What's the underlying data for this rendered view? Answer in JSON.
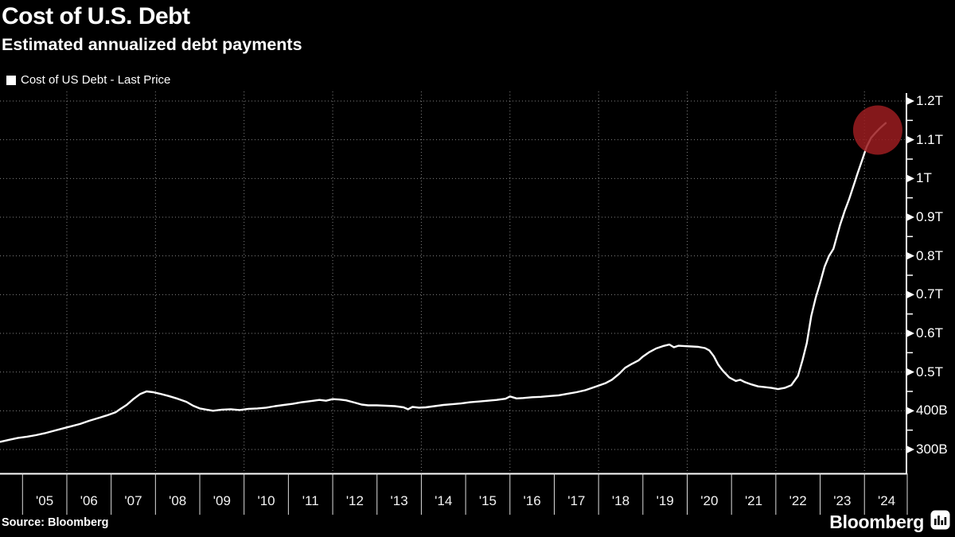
{
  "header": {
    "title": "Cost of U.S. Debt",
    "subtitle": "Estimated annualized debt payments"
  },
  "legend": {
    "label": "Cost of US Debt - Last Price",
    "swatch_color": "#ffffff"
  },
  "chart_data": {
    "type": "line",
    "title": "Cost of U.S. Debt",
    "subtitle": "Estimated annualized debt payments",
    "unit": "USD, annualized debt payments (B = billions, T = trillions)",
    "series": [
      {
        "name": "Cost of US Debt - Last Price",
        "color": "#ffffff",
        "x_years": [
          2004.5,
          2004.7,
          2004.9,
          2005.1,
          2005.3,
          2005.5,
          2005.7,
          2005.9,
          2006.1,
          2006.3,
          2006.5,
          2006.7,
          2006.9,
          2007.1,
          2007.2,
          2007.35,
          2007.5,
          2007.65,
          2007.8,
          2007.95,
          2008.1,
          2008.3,
          2008.5,
          2008.7,
          2008.85,
          2009.0,
          2009.15,
          2009.3,
          2009.5,
          2009.7,
          2009.9,
          2010.1,
          2010.3,
          2010.5,
          2010.7,
          2010.9,
          2011.1,
          2011.3,
          2011.5,
          2011.7,
          2011.85,
          2012.0,
          2012.15,
          2012.3,
          2012.5,
          2012.65,
          2012.8,
          2013.0,
          2013.2,
          2013.4,
          2013.6,
          2013.7,
          2013.8,
          2013.95,
          2014.1,
          2014.3,
          2014.5,
          2014.7,
          2014.9,
          2015.1,
          2015.3,
          2015.5,
          2015.7,
          2015.9,
          2016.0,
          2016.15,
          2016.3,
          2016.5,
          2016.7,
          2016.9,
          2017.1,
          2017.3,
          2017.5,
          2017.7,
          2017.85,
          2018.0,
          2018.15,
          2018.3,
          2018.45,
          2018.6,
          2018.75,
          2018.9,
          2019.0,
          2019.15,
          2019.3,
          2019.45,
          2019.6,
          2019.7,
          2019.8,
          2019.95,
          2020.1,
          2020.25,
          2020.4,
          2020.5,
          2020.6,
          2020.7,
          2020.8,
          2020.95,
          2021.1,
          2021.2,
          2021.3,
          2021.45,
          2021.6,
          2021.75,
          2021.9,
          2022.05,
          2022.2,
          2022.35,
          2022.5,
          2022.6,
          2022.7,
          2022.8,
          2022.9,
          2023.0,
          2023.1,
          2023.2,
          2023.3,
          2023.45,
          2023.55,
          2023.65,
          2023.75,
          2023.85,
          2023.95,
          2024.05,
          2024.15,
          2024.25,
          2024.35,
          2024.48
        ],
        "values_billions": [
          320,
          325,
          330,
          333,
          337,
          342,
          348,
          354,
          360,
          366,
          374,
          381,
          388,
          396,
          404,
          415,
          430,
          443,
          450,
          448,
          444,
          438,
          431,
          423,
          413,
          406,
          403,
          400,
          403,
          404,
          402,
          405,
          406,
          408,
          412,
          415,
          418,
          422,
          425,
          428,
          426,
          430,
          429,
          427,
          421,
          416,
          414,
          414,
          413,
          412,
          409,
          404,
          410,
          408,
          409,
          412,
          415,
          417,
          419,
          422,
          424,
          426,
          428,
          431,
          437,
          432,
          433,
          435,
          436,
          438,
          440,
          444,
          448,
          453,
          459,
          465,
          471,
          480,
          494,
          511,
          521,
          530,
          540,
          552,
          561,
          567,
          571,
          564,
          568,
          567,
          566,
          565,
          562,
          556,
          541,
          519,
          504,
          486,
          477,
          480,
          474,
          468,
          463,
          461,
          459,
          456,
          459,
          466,
          490,
          530,
          575,
          645,
          692,
          730,
          772,
          800,
          818,
          880,
          915,
          945,
          980,
          1015,
          1048,
          1082,
          1105,
          1118,
          1130,
          1143
        ]
      }
    ],
    "x_axis": {
      "tick_labels": [
        "'05",
        "'06",
        "'07",
        "'08",
        "'09",
        "'10",
        "'11",
        "'12",
        "'13",
        "'14",
        "'15",
        "'16",
        "'17",
        "'18",
        "'19",
        "'20",
        "'21",
        "'22",
        "'23",
        "'24"
      ],
      "tick_years": [
        2005,
        2006,
        2007,
        2008,
        2009,
        2010,
        2011,
        2012,
        2013,
        2014,
        2015,
        2016,
        2017,
        2018,
        2019,
        2020,
        2021,
        2022,
        2023,
        2024
      ],
      "range_years": [
        2004.5,
        2024.97
      ]
    },
    "y_axis": {
      "tick_labels": [
        "1.2T",
        "1.1T",
        "1T",
        "0.9T",
        "0.8T",
        "0.7T",
        "0.6T",
        "0.5T",
        "400B",
        "300B"
      ],
      "tick_values_billions": [
        1200,
        1100,
        1000,
        900,
        800,
        700,
        600,
        500,
        400,
        300
      ],
      "minor_tick_values_billions": [
        350,
        450,
        550,
        650,
        750,
        850,
        950,
        1050,
        1150
      ],
      "range_billions": [
        238,
        1225
      ],
      "position": "right"
    },
    "gridlines": {
      "style": "dotted",
      "color": "#999999",
      "horizontal_billions": [
        300,
        400,
        500,
        600,
        700,
        800,
        900,
        1000,
        1100,
        1200
      ],
      "vertical_years": [
        2006,
        2008,
        2010,
        2012,
        2014,
        2016,
        2018,
        2020,
        2022,
        2024
      ]
    },
    "annotation": {
      "type": "highlight-circle",
      "x_year": 2024.3,
      "value_billions": 1125,
      "radius_px": 31,
      "color": "#9b1c20",
      "opacity": 0.85
    },
    "last_point": {
      "x_year": 2024.48,
      "value_billions": 1143
    }
  },
  "footer": {
    "source": "Source: Bloomberg",
    "logo": "Bloomberg"
  },
  "colors": {
    "background": "#000000",
    "line": "#ffffff",
    "axis": "#ffffff",
    "grid": "#999999",
    "highlight_red": "#9b1c20"
  }
}
